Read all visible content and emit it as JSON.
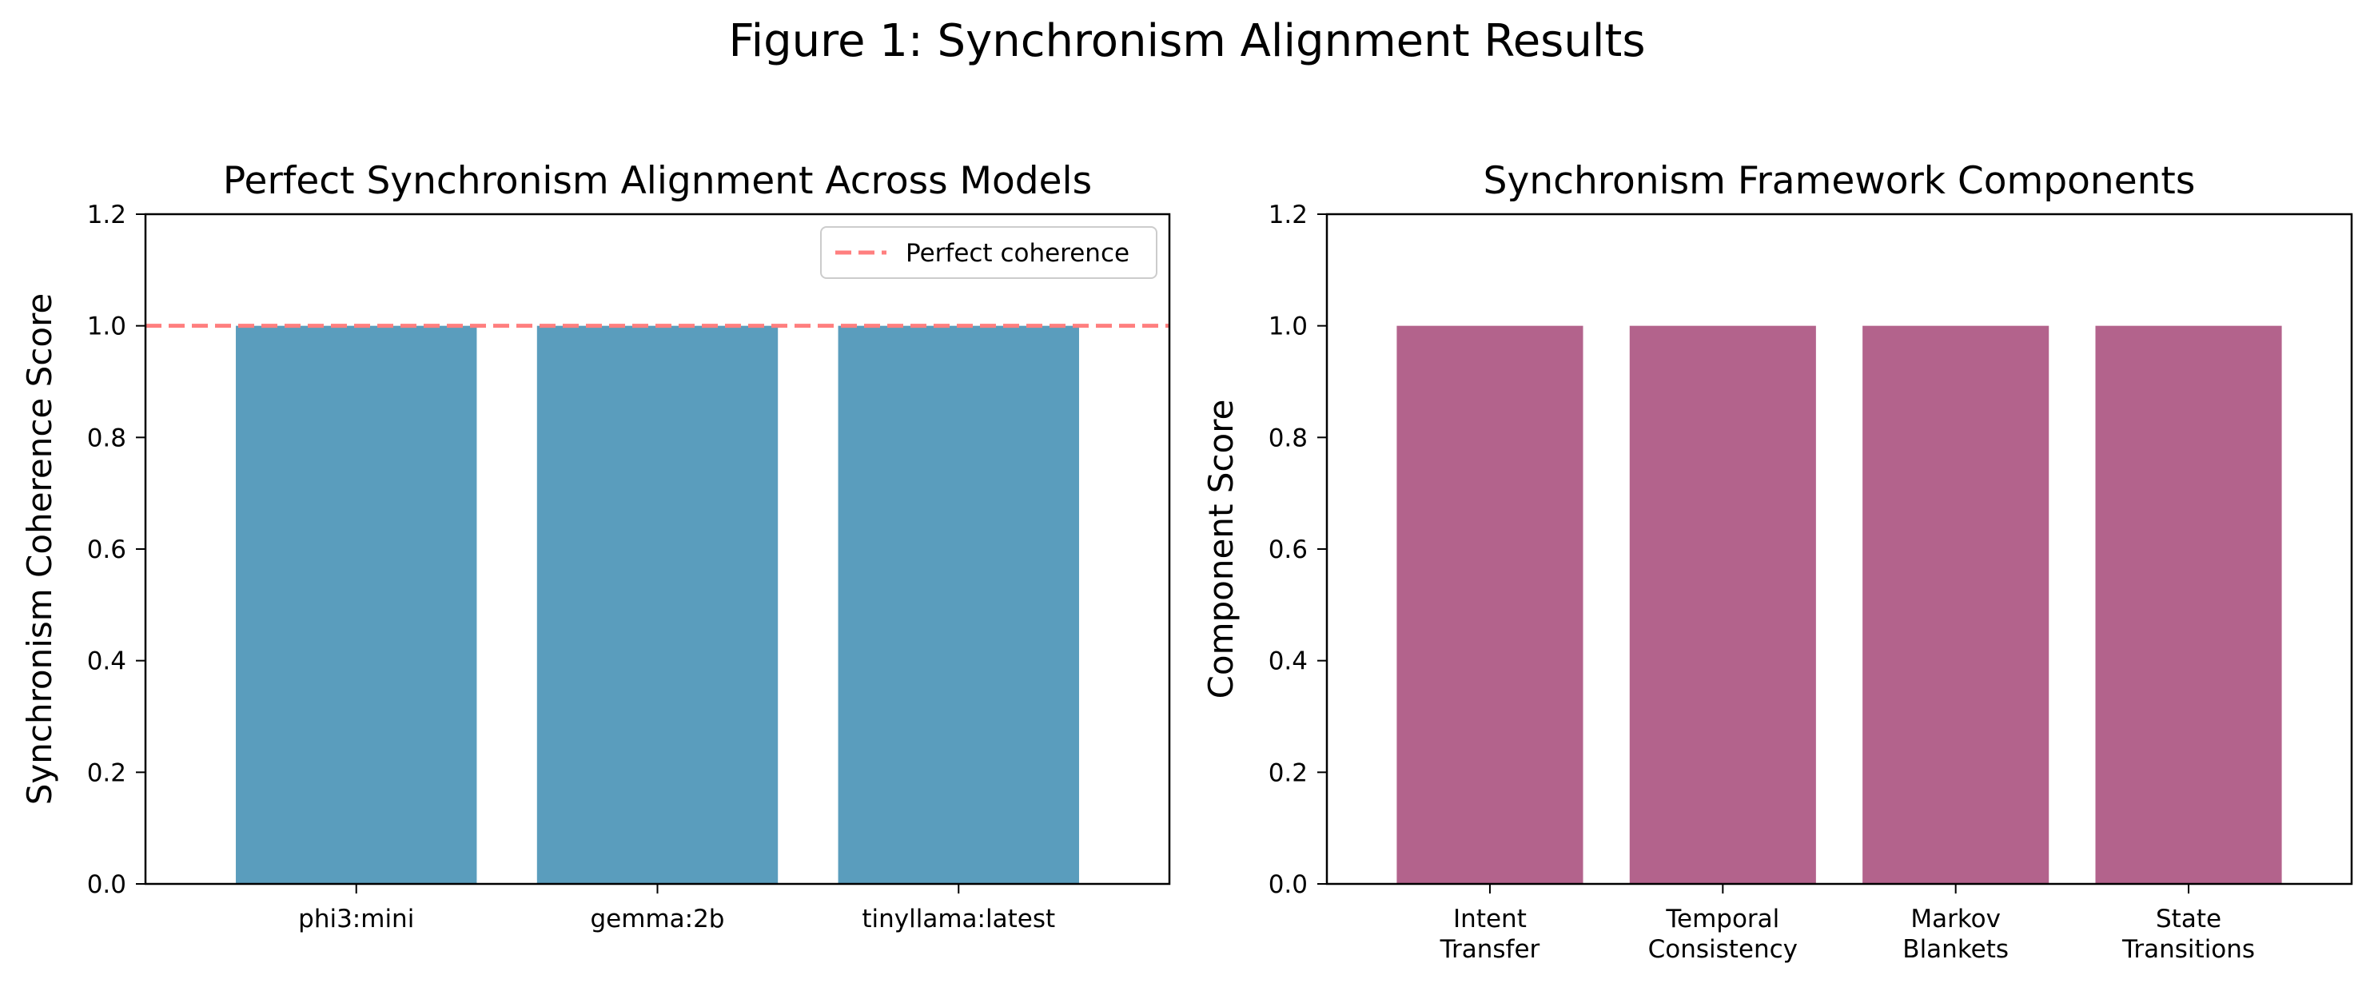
{
  "figure": {
    "title": "Figure 1: Synchronism Alignment Results"
  },
  "chart_data": [
    {
      "type": "bar",
      "title": "Perfect Synchronism Alignment Across Models",
      "xlabel": "",
      "ylabel": "Synchronism Coherence Score",
      "ylim": [
        0,
        1.2
      ],
      "yticks": [
        0.0,
        0.2,
        0.4,
        0.6,
        0.8,
        1.0,
        1.2
      ],
      "ytick_labels": [
        "0.0",
        "0.2",
        "0.4",
        "0.6",
        "0.8",
        "1.0",
        "1.2"
      ],
      "categories": [
        [
          "phi3:mini"
        ],
        [
          "gemma:2b"
        ],
        [
          "tinyllama:latest"
        ]
      ],
      "values": [
        1.0,
        1.0,
        1.0
      ],
      "bar_color": "#5a9dbd",
      "reference_line": {
        "y": 1.0,
        "label": "Perfect coherence",
        "color": "#ff7f7f",
        "style": "dashed"
      },
      "legend": {
        "position": "top-right",
        "entries": [
          "Perfect coherence"
        ]
      },
      "grid": false
    },
    {
      "type": "bar",
      "title": "Synchronism Framework Components",
      "xlabel": "",
      "ylabel": "Component Score",
      "ylim": [
        0,
        1.2
      ],
      "yticks": [
        0.0,
        0.2,
        0.4,
        0.6,
        0.8,
        1.0,
        1.2
      ],
      "ytick_labels": [
        "0.0",
        "0.2",
        "0.4",
        "0.6",
        "0.8",
        "1.0",
        "1.2"
      ],
      "categories": [
        [
          "Intent",
          "Transfer"
        ],
        [
          "Temporal",
          "Consistency"
        ],
        [
          "Markov",
          "Blankets"
        ],
        [
          "State",
          "Transitions"
        ]
      ],
      "values": [
        1.0,
        1.0,
        1.0,
        1.0
      ],
      "bar_color": "#b3638c",
      "grid": false
    }
  ]
}
